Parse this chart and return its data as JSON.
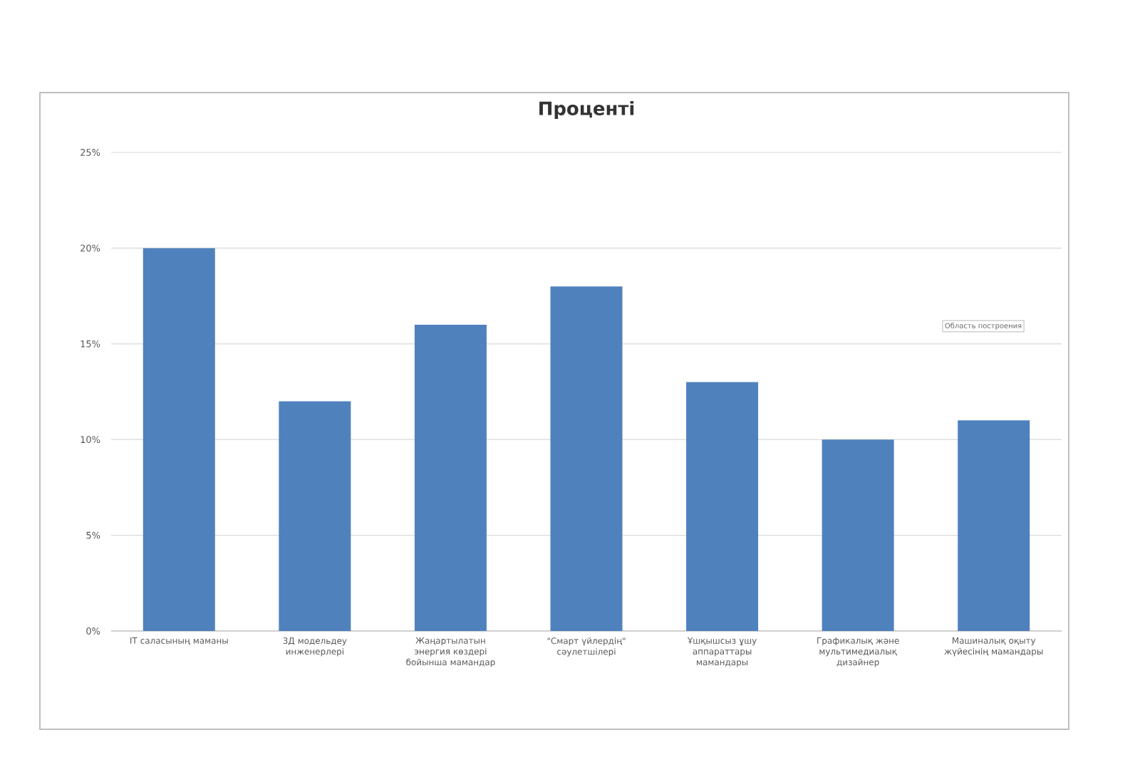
{
  "chart_data": {
    "type": "bar",
    "title": "Проценті",
    "categories": [
      "IT саласының маманы",
      "3Д модельдеу инженерлері",
      "Жаңартылатын энергия көздері бойынша мамандар",
      "\"Смарт үйлердің\" сәулетшілері",
      "Ұшқышсыз ұшу аппараттары мамандары",
      "Графикалық және мультимедиалық дизайнер",
      "Машиналық оқыту жүйесінің мамандары"
    ],
    "values": [
      20,
      12,
      16,
      18,
      13,
      10,
      11
    ],
    "color": "#4f81bd",
    "ylim": [
      0,
      25
    ],
    "yticks": [
      {
        "value": 0,
        "label": "0%"
      },
      {
        "value": 5,
        "label": "5%"
      },
      {
        "value": 10,
        "label": "10%"
      },
      {
        "value": 15,
        "label": "15%"
      },
      {
        "value": 20,
        "label": "20%"
      },
      {
        "value": 25,
        "label": "25%"
      }
    ],
    "grid": "y",
    "annotations": [
      "Область построения"
    ]
  }
}
